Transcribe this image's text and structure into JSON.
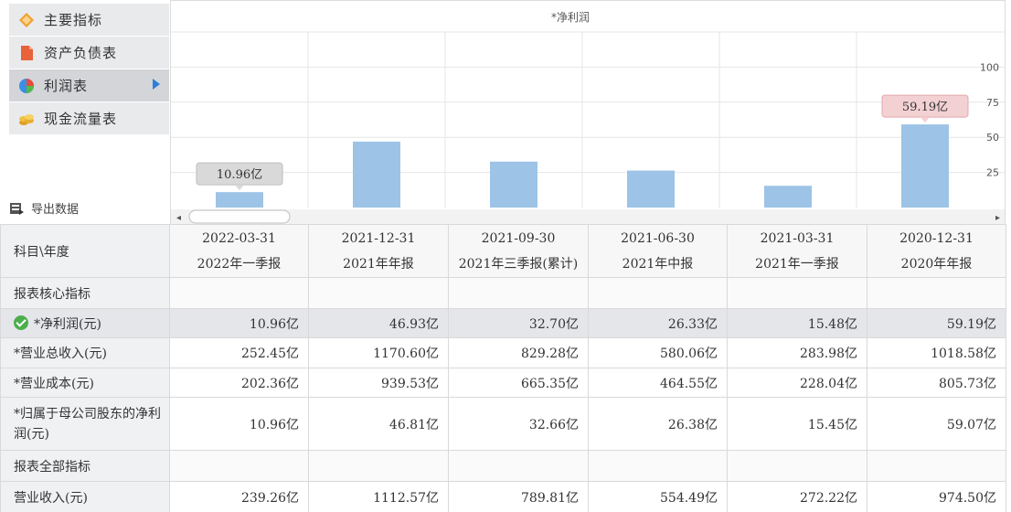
{
  "sidebar": {
    "items": [
      {
        "label": "主要指标",
        "icon": "diamond-icon"
      },
      {
        "label": "资产负债表",
        "icon": "document-icon"
      },
      {
        "label": "利润表",
        "icon": "pie-chart-icon"
      },
      {
        "label": "现金流量表",
        "icon": "coins-icon"
      }
    ],
    "export_label": "导出数据"
  },
  "chart_data": {
    "type": "bar",
    "title": "*净利润",
    "categories": [
      "2022-03-31",
      "2021-12-31",
      "2021-09-30",
      "2021-06-30",
      "2021-03-31",
      "2020-12-31"
    ],
    "values": [
      10.96,
      46.93,
      32.7,
      26.33,
      15.48,
      59.19
    ],
    "ylim": [
      0,
      125
    ],
    "yticks": [
      25,
      50,
      75,
      100
    ],
    "ytick_labels": [
      "25",
      "50",
      "75",
      "100"
    ],
    "tooltips": [
      {
        "index": 0,
        "label": "10.96亿"
      },
      {
        "index": 5,
        "label": "59.19亿"
      }
    ],
    "bar_color": "#9dc3e6",
    "scroll_left": "◂",
    "scroll_right": "▸"
  },
  "table": {
    "corner_label": "科目\\年度",
    "columns": [
      {
        "date": "2022-03-31",
        "period": "2022年一季报"
      },
      {
        "date": "2021-12-31",
        "period": "2021年年报"
      },
      {
        "date": "2021-09-30",
        "period": "2021年三季报(累计)"
      },
      {
        "date": "2021-06-30",
        "period": "2021年中报"
      },
      {
        "date": "2021-03-31",
        "period": "2021年一季报"
      },
      {
        "date": "2020-12-31",
        "period": "2020年年报"
      }
    ],
    "section1": "报表核心指标",
    "section2": "报表全部指标",
    "rows": [
      {
        "label": "*净利润(元)",
        "values": [
          "10.96亿",
          "46.93亿",
          "32.70亿",
          "26.33亿",
          "15.48亿",
          "59.19亿"
        ]
      },
      {
        "label": "*营业总收入(元)",
        "values": [
          "252.45亿",
          "1170.60亿",
          "829.28亿",
          "580.06亿",
          "283.98亿",
          "1018.58亿"
        ]
      },
      {
        "label": "*营业成本(元)",
        "values": [
          "202.36亿",
          "939.53亿",
          "665.35亿",
          "464.55亿",
          "228.04亿",
          "805.73亿"
        ]
      },
      {
        "label": "*归属于母公司股东的净利润(元)",
        "values": [
          "10.96亿",
          "46.81亿",
          "32.66亿",
          "26.38亿",
          "15.45亿",
          "59.07亿"
        ]
      },
      {
        "label": "营业收入(元)",
        "values": [
          "239.26亿",
          "1112.57亿",
          "789.81亿",
          "554.49亿",
          "272.22亿",
          "974.50亿"
        ]
      }
    ]
  }
}
